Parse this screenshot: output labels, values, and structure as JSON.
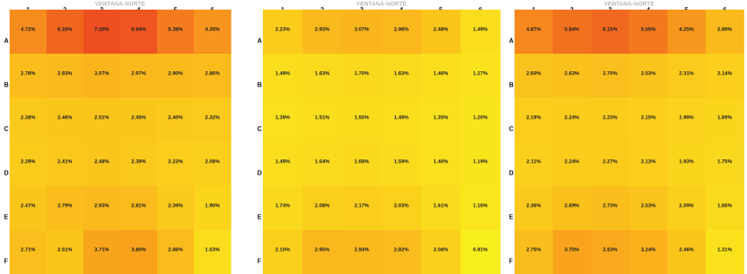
{
  "chart_data": [
    {
      "type": "heatmap",
      "title": "VENTANA-NORTE",
      "columns": [
        "1",
        "2",
        "3",
        "4",
        "5",
        "6"
      ],
      "rows": [
        "A",
        "B",
        "C",
        "D",
        "E",
        "F"
      ],
      "value_unit": "%",
      "values": [
        [
          4.72,
          6.28,
          7.2,
          6.94,
          5.38,
          4.35
        ],
        [
          2.78,
          2.93,
          3.07,
          2.97,
          2.9,
          2.86
        ],
        [
          2.38,
          2.46,
          2.51,
          2.45,
          2.4,
          2.32
        ],
        [
          2.29,
          2.41,
          2.48,
          2.39,
          2.22,
          2.08
        ],
        [
          2.47,
          2.79,
          2.93,
          2.81,
          2.39,
          1.9
        ],
        [
          2.71,
          2.51,
          3.71,
          3.8,
          2.86,
          1.53
        ]
      ],
      "labels": [
        [
          "4.72%",
          "6.28%",
          "7.20%",
          "6.94%",
          "5.38%",
          "4.35%"
        ],
        [
          "2.78%",
          "2.93%",
          "3.07%",
          "2.97%",
          "2.90%",
          "2.86%"
        ],
        [
          "2.38%",
          "2.46%",
          "2.51%",
          "2.45%",
          "2.40%",
          "2.32%"
        ],
        [
          "2.29%",
          "2.41%",
          "2.48%",
          "2.39%",
          "2.22%",
          "2.08%"
        ],
        [
          "2.47%",
          "2.79%",
          "2.93%",
          "2.81%",
          "2.39%",
          "1.90%"
        ],
        [
          "2.71%",
          "2.51%",
          "3.71%",
          "3.80%",
          "2.86%",
          "1.53%"
        ]
      ],
      "color_scale": [
        "#f9ee1e",
        "#fbcf1c",
        "#f9a51c",
        "#f47c1e",
        "#ed4f20"
      ]
    },
    {
      "type": "heatmap",
      "title": "VENTANA-NORTE",
      "columns": [
        "1",
        "2",
        "3",
        "4",
        "5",
        "6"
      ],
      "rows": [
        "A",
        "B",
        "C",
        "D",
        "E",
        "F"
      ],
      "value_unit": "%",
      "values": [
        [
          2.23,
          2.93,
          3.07,
          2.98,
          2.48,
          1.49
        ],
        [
          1.49,
          1.63,
          1.7,
          1.63,
          1.46,
          1.27
        ],
        [
          1.39,
          1.51,
          1.55,
          1.49,
          1.35,
          1.2
        ],
        [
          1.49,
          1.64,
          1.68,
          1.59,
          1.4,
          1.19
        ],
        [
          1.74,
          2.08,
          2.17,
          2.03,
          1.61,
          1.16
        ],
        [
          2.1,
          2.95,
          2.94,
          2.82,
          2.08,
          0.91
        ]
      ],
      "labels": [
        [
          "2.23%",
          "2.93%",
          "3.07%",
          "2.98%",
          "2.48%",
          "1.49%"
        ],
        [
          "1.49%",
          "1.63%",
          "1.70%",
          "1.63%",
          "1.46%",
          "1.27%"
        ],
        [
          "1.39%",
          "1.51%",
          "1.55%",
          "1.49%",
          "1.35%",
          "1.20%"
        ],
        [
          "1.49%",
          "1.64%",
          "1.68%",
          "1.59%",
          "1.40%",
          "1.19%"
        ],
        [
          "1.74%",
          "2.08%",
          "2.17%",
          "2.03%",
          "1.61%",
          "1.16%"
        ],
        [
          "2.10%",
          "2.95%",
          "2.94%",
          "2.82%",
          "2.08%",
          "0.91%"
        ]
      ],
      "color_scale": [
        "#f9ee1e",
        "#fbcf1c",
        "#f9a51c",
        "#f47c1e",
        "#ed4f20"
      ]
    },
    {
      "type": "heatmap",
      "title": "VENTANA-NORTE",
      "columns": [
        "1",
        "2",
        "3",
        "4",
        "5",
        "6"
      ],
      "rows": [
        "A",
        "B",
        "C",
        "D",
        "E",
        "F"
      ],
      "value_unit": "%",
      "values": [
        [
          4.87,
          5.84,
          6.15,
          5.55,
          4.25,
          2.89
        ],
        [
          2.6,
          2.63,
          2.7,
          2.53,
          2.31,
          2.14
        ],
        [
          2.19,
          2.24,
          2.23,
          2.15,
          1.99,
          1.89
        ],
        [
          2.11,
          2.24,
          2.27,
          2.13,
          1.93,
          1.75
        ],
        [
          2.36,
          2.69,
          2.73,
          2.53,
          2.09,
          1.66
        ],
        [
          2.75,
          3.75,
          3.53,
          3.24,
          2.46,
          1.31
        ]
      ],
      "labels": [
        [
          "4.87%",
          "5.84%",
          "6.15%",
          "5.55%",
          "4.25%",
          "2.89%"
        ],
        [
          "2.60%",
          "2.63%",
          "2.70%",
          "2.53%",
          "2.31%",
          "2.14%"
        ],
        [
          "2.19%",
          "2.24%",
          "2.23%",
          "2.15%",
          "1.99%",
          "1.89%"
        ],
        [
          "2.11%",
          "2.24%",
          "2.27%",
          "2.13%",
          "1.93%",
          "1.75%"
        ],
        [
          "2.36%",
          "2.69%",
          "2.73%",
          "2.53%",
          "2.09%",
          "1.66%"
        ],
        [
          "2.75%",
          "3.75%",
          "3.53%",
          "3.24%",
          "2.46%",
          "1.31%"
        ]
      ],
      "color_scale": [
        "#f9ee1e",
        "#fbcf1c",
        "#f9a51c",
        "#f47c1e",
        "#ed4f20"
      ]
    }
  ]
}
